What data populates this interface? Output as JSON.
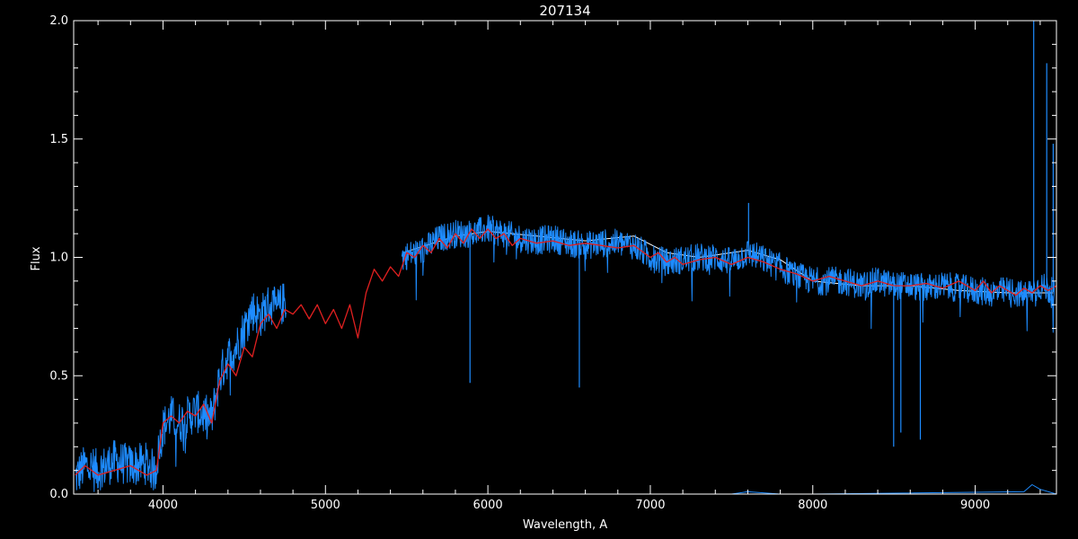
{
  "chart_data": {
    "type": "line",
    "title": "207134",
    "xlabel": "Wavelength, A",
    "ylabel": "Flux",
    "xlim": [
      3450,
      9500
    ],
    "ylim": [
      0.0,
      2.0
    ],
    "x_ticks": [
      "4000",
      "5000",
      "6000",
      "7000",
      "8000",
      "9000"
    ],
    "y_ticks": [
      "0.0",
      "0.5",
      "1.0",
      "1.5",
      "2.0"
    ],
    "grid": false,
    "legend": "none",
    "colors": {
      "background": "#000000",
      "axes": "#ffffff",
      "observed": "#1e8cff",
      "model": "#e02020",
      "comparison": "#ffffff",
      "error": "#1e8cff"
    },
    "series": [
      {
        "key": "comparison",
        "segments": [
          {
            "x": [
              5480,
              5800,
              6000,
              6300,
              6600,
              6900,
              7100,
              7300,
              7600,
              7800,
              8000,
              8300,
              8600,
              8900,
              9200,
              9480
            ],
            "y": [
              1.02,
              1.09,
              1.11,
              1.09,
              1.07,
              1.09,
              1.02,
              1.0,
              1.03,
              0.99,
              0.9,
              0.88,
              0.88,
              0.86,
              0.85,
              0.85
            ]
          }
        ]
      },
      {
        "key": "observed",
        "segments": [
          {
            "x": [
              3460,
              3520,
              3600,
              3700,
              3800,
              3900,
              3950,
              4000,
              4050,
              4100,
              4200,
              4300,
              4350,
              4400,
              4450,
              4500,
              4550,
              4600,
              4650,
              4700,
              4760
            ],
            "y": [
              0.07,
              0.12,
              0.1,
              0.14,
              0.12,
              0.13,
              0.09,
              0.28,
              0.33,
              0.3,
              0.35,
              0.32,
              0.5,
              0.58,
              0.62,
              0.7,
              0.78,
              0.75,
              0.8,
              0.78,
              0.82
            ]
          },
          {
            "x": [
              5470,
              5600,
              5700,
              5800,
              5900,
              6000,
              6100,
              6200,
              6300,
              6400,
              6500,
              6600,
              6700,
              6800,
              6900,
              7000,
              7100,
              7200,
              7300,
              7400,
              7500,
              7600,
              7700,
              7800,
              7900,
              8000,
              8100,
              8200,
              8300,
              8400,
              8500,
              8600,
              8700,
              8800,
              8900,
              9000,
              9100,
              9200,
              9300,
              9400,
              9490
            ],
            "y": [
              1.0,
              1.03,
              1.08,
              1.1,
              1.1,
              1.12,
              1.1,
              1.08,
              1.07,
              1.08,
              1.06,
              1.05,
              1.06,
              1.06,
              1.05,
              1.0,
              0.98,
              0.99,
              1.0,
              1.0,
              0.98,
              1.02,
              0.99,
              0.96,
              0.92,
              0.9,
              0.9,
              0.9,
              0.88,
              0.9,
              0.88,
              0.88,
              0.87,
              0.88,
              0.87,
              0.86,
              0.85,
              0.86,
              0.84,
              0.88,
              0.85
            ]
          }
        ]
      },
      {
        "key": "error",
        "segments": [
          {
            "x": [
              3460,
              4800,
              5470,
              7500,
              7600,
              7800,
              8000,
              9300,
              9350,
              9400,
              9500
            ],
            "y": [
              0.0,
              0.0,
              0.0,
              0.0,
              0.01,
              0.0,
              0.0,
              0.01,
              0.04,
              0.02,
              0.0
            ]
          }
        ]
      },
      {
        "key": "model",
        "segments": [
          {
            "x": [
              3460,
              3520,
              3600,
              3700,
              3800,
              3900,
              3960,
              4000,
              4050,
              4100,
              4150,
              4200,
              4250,
              4300,
              4350,
              4400,
              4450,
              4500,
              4550,
              4600,
              4650,
              4700,
              4750,
              4800,
              4850,
              4900,
              4950,
              5000,
              5050,
              5100,
              5150,
              5200,
              5250,
              5300,
              5350,
              5400,
              5450,
              5500,
              5550,
              5600,
              5650,
              5700,
              5750,
              5800,
              5850,
              5900,
              5950,
              6000,
              6050,
              6100,
              6150,
              6200,
              6300,
              6400,
              6500,
              6600,
              6700,
              6800,
              6900,
              7000,
              7050,
              7100,
              7150,
              7200,
              7300,
              7400,
              7500,
              7600,
              7700,
              7800,
              7900,
              8000,
              8100,
              8200,
              8300,
              8400,
              8500,
              8600,
              8700,
              8800,
              8900,
              9000,
              9050,
              9100,
              9150,
              9200,
              9250,
              9300,
              9350,
              9400,
              9450,
              9500
            ],
            "y": [
              0.08,
              0.12,
              0.08,
              0.1,
              0.12,
              0.08,
              0.1,
              0.3,
              0.33,
              0.3,
              0.35,
              0.33,
              0.38,
              0.3,
              0.48,
              0.55,
              0.5,
              0.62,
              0.58,
              0.72,
              0.76,
              0.7,
              0.78,
              0.76,
              0.8,
              0.74,
              0.8,
              0.72,
              0.78,
              0.7,
              0.8,
              0.66,
              0.85,
              0.95,
              0.9,
              0.96,
              0.92,
              1.02,
              1.0,
              1.05,
              1.02,
              1.08,
              1.04,
              1.1,
              1.06,
              1.12,
              1.08,
              1.12,
              1.08,
              1.1,
              1.05,
              1.08,
              1.06,
              1.07,
              1.05,
              1.06,
              1.05,
              1.04,
              1.05,
              1.0,
              1.02,
              0.98,
              1.0,
              0.97,
              0.99,
              1.0,
              0.97,
              1.0,
              0.98,
              0.95,
              0.93,
              0.9,
              0.92,
              0.9,
              0.88,
              0.9,
              0.88,
              0.88,
              0.89,
              0.87,
              0.9,
              0.86,
              0.9,
              0.85,
              0.88,
              0.86,
              0.84,
              0.87,
              0.85,
              0.88,
              0.86,
              0.88
            ]
          }
        ]
      }
    ],
    "spikes": [
      {
        "x": 5890,
        "y": 0.47
      },
      {
        "x": 6563,
        "y": 0.45
      },
      {
        "x": 7605,
        "y": 1.23
      },
      {
        "x": 8498,
        "y": 0.2
      },
      {
        "x": 8542,
        "y": 0.26
      },
      {
        "x": 8662,
        "y": 0.23
      },
      {
        "x": 9360,
        "y": 2.0
      },
      {
        "x": 9440,
        "y": 1.82
      },
      {
        "x": 9480,
        "y": 1.48
      }
    ]
  }
}
